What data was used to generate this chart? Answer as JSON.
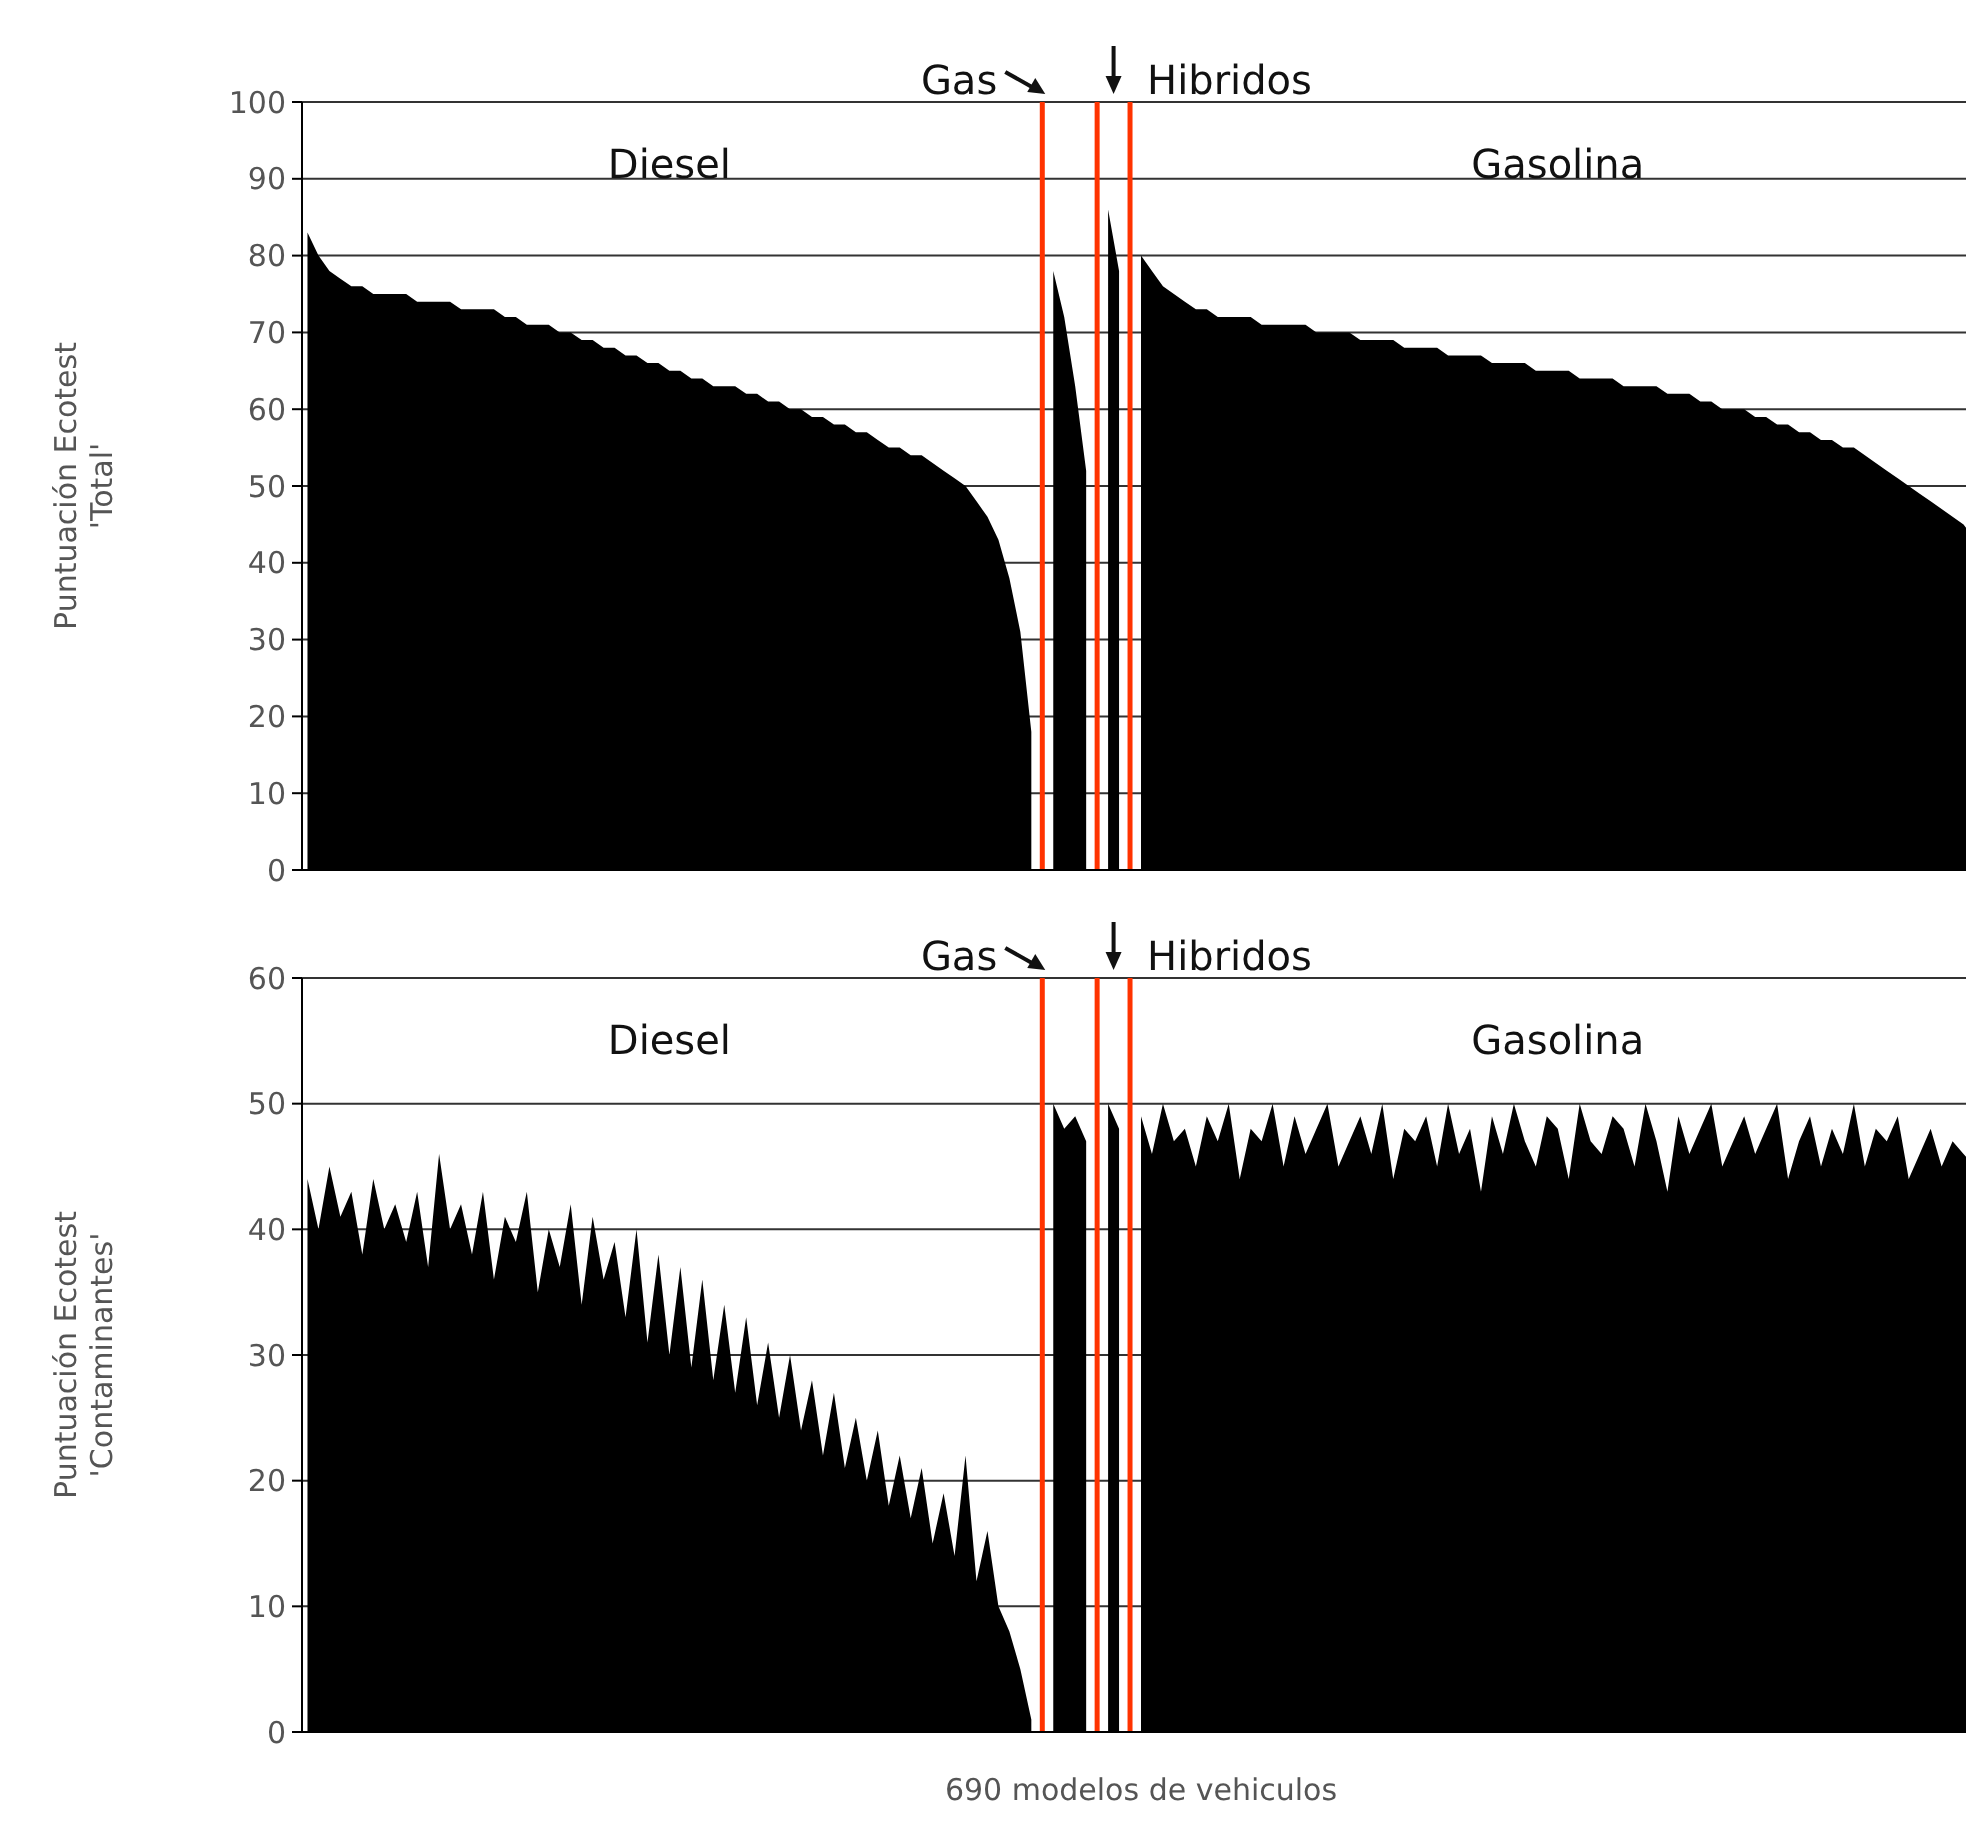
{
  "chart_data": [
    {
      "type": "area",
      "ylabel": "Puntuación Ecotest\n'Total'",
      "ylim": [
        0,
        100
      ],
      "yticks": [
        0,
        10,
        20,
        30,
        40,
        50,
        60,
        70,
        80,
        90,
        100
      ],
      "grid": "y",
      "tick_labels": "y",
      "annotations": [
        "Diesel",
        "Gas",
        "Hibridos",
        "Gasolina"
      ],
      "categories": [
        null,
        null,
        null,
        null,
        null,
        null,
        null,
        null,
        null,
        null,
        null,
        null,
        null,
        null,
        null,
        null,
        null,
        null,
        null,
        null,
        null,
        null,
        null,
        null,
        null,
        null,
        null,
        null,
        null,
        null,
        null,
        null,
        null,
        null,
        null,
        null,
        null,
        null,
        null,
        null,
        null,
        null,
        null,
        null,
        null,
        null,
        null,
        null,
        null,
        null,
        null,
        null,
        null,
        null,
        null,
        null,
        null,
        null,
        null,
        null,
        null,
        null,
        null,
        null,
        null,
        null,
        null,
        null,
        null,
        null,
        null,
        null,
        null,
        null,
        null,
        null,
        null,
        null,
        null,
        null,
        null,
        null,
        null,
        null,
        null,
        null,
        null,
        null,
        null,
        null,
        null,
        null,
        null,
        null,
        null,
        null,
        null,
        null,
        null,
        null,
        null,
        null,
        null,
        null,
        null,
        null,
        null,
        null,
        null,
        null,
        null,
        null,
        null,
        null,
        null,
        null,
        null,
        null,
        null,
        null,
        null,
        null,
        null,
        null,
        null,
        null,
        null,
        null,
        null,
        null,
        null,
        null,
        null,
        null,
        null,
        null,
        null,
        null,
        null,
        null,
        null,
        null,
        null,
        null,
        null,
        null,
        null,
        null,
        null,
        null,
        null,
        null,
        null
      ],
      "series": [
        {
          "color": "#000000",
          "values": [
            83,
            80,
            78,
            77,
            76,
            76,
            75,
            75,
            75,
            75,
            74,
            74,
            74,
            74,
            73,
            73,
            73,
            73,
            72,
            72,
            71,
            71,
            71,
            70,
            70,
            69,
            69,
            68,
            68,
            67,
            67,
            66,
            66,
            65,
            65,
            64,
            64,
            63,
            63,
            63,
            62,
            62,
            61,
            61,
            60,
            60,
            59,
            59,
            58,
            58,
            57,
            57,
            56,
            55,
            55,
            54,
            54,
            53,
            52,
            51,
            50,
            48,
            46,
            43,
            38,
            31,
            18,
            null,
            78,
            72,
            63,
            52,
            null,
            86,
            78,
            null,
            80,
            78,
            76,
            75,
            74,
            73,
            73,
            72,
            72,
            72,
            72,
            71,
            71,
            71,
            71,
            71,
            70,
            70,
            70,
            70,
            69,
            69,
            69,
            69,
            68,
            68,
            68,
            68,
            67,
            67,
            67,
            67,
            66,
            66,
            66,
            66,
            65,
            65,
            65,
            65,
            64,
            64,
            64,
            64,
            63,
            63,
            63,
            63,
            62,
            62,
            62,
            61,
            61,
            60,
            60,
            60,
            59,
            59,
            58,
            58,
            57,
            57,
            56,
            56,
            55,
            55,
            54,
            53,
            52,
            51,
            50,
            49,
            48,
            47,
            46,
            45,
            43
          ]
        }
      ]
    },
    {
      "type": "area",
      "ylabel": "Puntuación Ecotest\n'Contaminantes'",
      "xlabel": "690 modelos de vehiculos",
      "ylim": [
        0,
        60
      ],
      "yticks": [
        0,
        10,
        20,
        30,
        40,
        50,
        60
      ],
      "grid": "y",
      "tick_labels": "y",
      "annotations": [
        "Diesel",
        "Gas",
        "Hibridos",
        "Gasolina"
      ],
      "categories": [
        null,
        null,
        null,
        null,
        null,
        null,
        null,
        null,
        null,
        null,
        null,
        null,
        null,
        null,
        null,
        null,
        null,
        null,
        null,
        null,
        null,
        null,
        null,
        null,
        null,
        null,
        null,
        null,
        null,
        null,
        null,
        null,
        null,
        null,
        null,
        null,
        null,
        null,
        null,
        null,
        null,
        null,
        null,
        null,
        null,
        null,
        null,
        null,
        null,
        null,
        null,
        null,
        null,
        null,
        null,
        null,
        null,
        null,
        null,
        null,
        null,
        null,
        null,
        null,
        null,
        null,
        null,
        null,
        null,
        null,
        null,
        null,
        null,
        null,
        null,
        null,
        null,
        null,
        null,
        null,
        null,
        null,
        null,
        null,
        null,
        null,
        null,
        null,
        null,
        null,
        null,
        null,
        null,
        null,
        null,
        null,
        null,
        null,
        null,
        null,
        null,
        null,
        null,
        null,
        null,
        null,
        null,
        null,
        null,
        null,
        null,
        null,
        null,
        null,
        null,
        null,
        null,
        null,
        null,
        null,
        null,
        null,
        null,
        null,
        null,
        null,
        null,
        null,
        null,
        null,
        null,
        null,
        null,
        null,
        null,
        null,
        null,
        null,
        null,
        null,
        null,
        null,
        null,
        null,
        null,
        null,
        null,
        null,
        null,
        null,
        null,
        null,
        null
      ],
      "series": [
        {
          "color": "#000000",
          "values": [
            44,
            40,
            45,
            41,
            43,
            38,
            44,
            40,
            42,
            39,
            43,
            37,
            46,
            40,
            42,
            38,
            43,
            36,
            41,
            39,
            43,
            35,
            40,
            37,
            42,
            34,
            41,
            36,
            39,
            33,
            40,
            31,
            38,
            30,
            37,
            29,
            36,
            28,
            34,
            27,
            33,
            26,
            31,
            25,
            30,
            24,
            28,
            22,
            27,
            21,
            25,
            20,
            24,
            18,
            22,
            17,
            21,
            15,
            19,
            14,
            22,
            12,
            16,
            10,
            8,
            5,
            1,
            null,
            50,
            48,
            49,
            47,
            null,
            50,
            48,
            null,
            49,
            46,
            50,
            47,
            48,
            45,
            49,
            47,
            50,
            44,
            48,
            47,
            50,
            45,
            49,
            46,
            48,
            50,
            45,
            47,
            49,
            46,
            50,
            44,
            48,
            47,
            49,
            45,
            50,
            46,
            48,
            43,
            49,
            46,
            50,
            47,
            45,
            49,
            48,
            44,
            50,
            47,
            46,
            49,
            48,
            45,
            50,
            47,
            43,
            49,
            46,
            48,
            50,
            45,
            47,
            49,
            46,
            48,
            50,
            44,
            47,
            49,
            45,
            48,
            46,
            50,
            45,
            48,
            47,
            49,
            44,
            46,
            48,
            45,
            47,
            46,
            45
          ]
        }
      ]
    }
  ]
}
